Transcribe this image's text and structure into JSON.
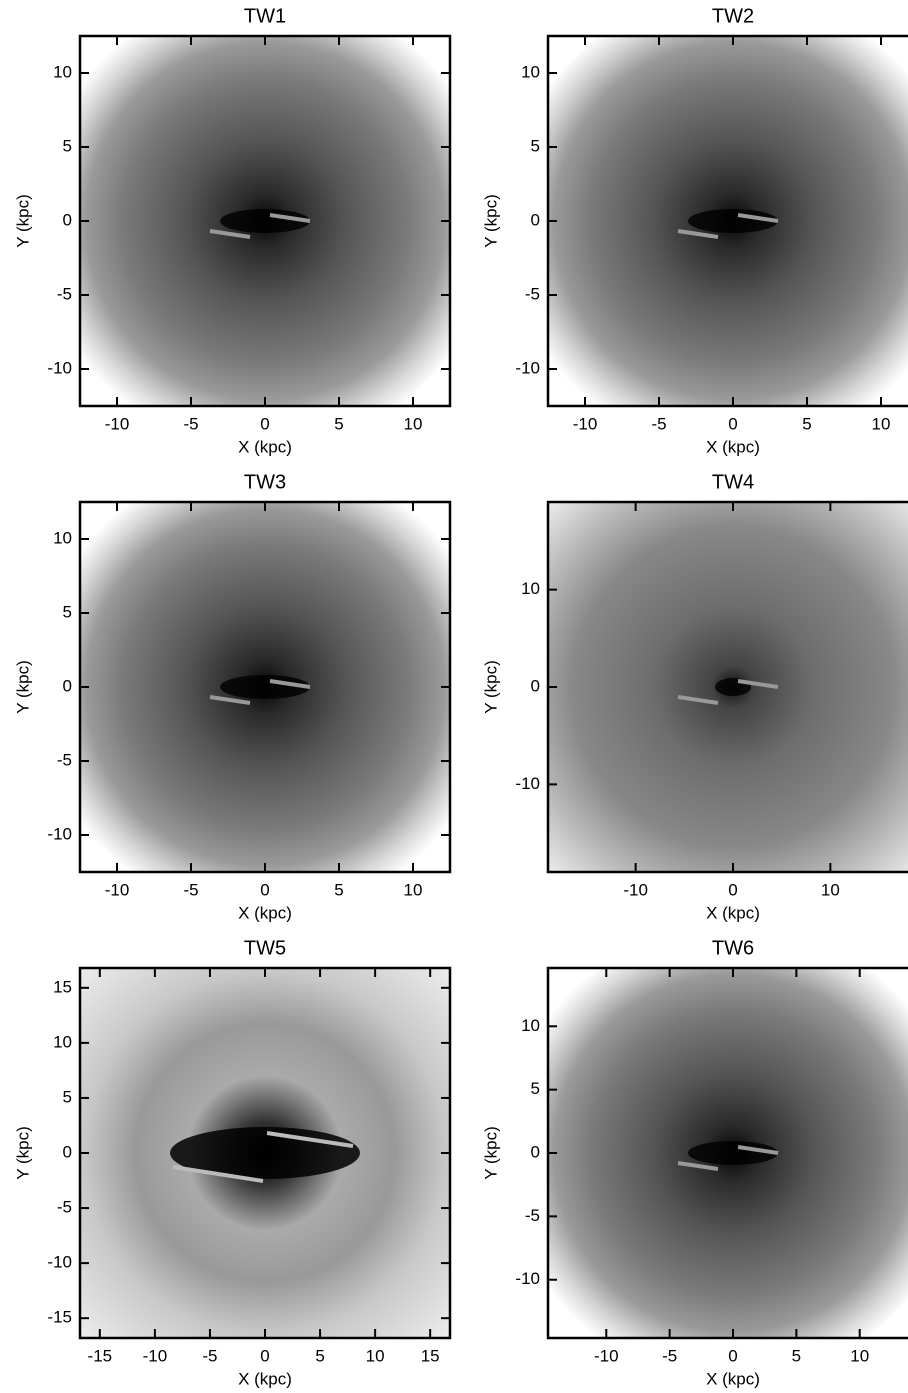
{
  "chart_data": [
    {
      "type": "image",
      "title": "TW1",
      "x_label": "X (kpc)",
      "y_label": "Y (kpc)",
      "xlim": [
        -12.5,
        12.5
      ],
      "ylim": [
        -12.5,
        12.5
      ],
      "xticks": [
        -10,
        -5,
        0,
        5,
        10
      ],
      "yticks": [
        -10,
        -5,
        0,
        5,
        10
      ]
    },
    {
      "type": "image",
      "title": "TW2",
      "x_label": "X (kpc)",
      "y_label": "Y (kpc)",
      "xlim": [
        -12.5,
        12.5
      ],
      "ylim": [
        -12.5,
        12.5
      ],
      "xticks": [
        -10,
        -5,
        0,
        5,
        10
      ],
      "yticks": [
        -10,
        -5,
        0,
        5,
        10
      ]
    },
    {
      "type": "image",
      "title": "TW3",
      "x_label": "X (kpc)",
      "y_label": "Y (kpc)",
      "xlim": [
        -12.5,
        12.5
      ],
      "ylim": [
        -12.5,
        12.5
      ],
      "xticks": [
        -10,
        -5,
        0,
        5,
        10
      ],
      "yticks": [
        -10,
        -5,
        0,
        5,
        10
      ]
    },
    {
      "type": "image",
      "title": "TW4",
      "x_label": "X (kpc)",
      "y_label": "Y (kpc)",
      "xlim": [
        -19,
        19
      ],
      "ylim": [
        -19,
        19
      ],
      "xticks": [
        -10,
        0,
        10
      ],
      "yticks": [
        -10,
        0,
        10
      ]
    },
    {
      "type": "image",
      "title": "TW5",
      "x_label": "X (kpc)",
      "y_label": "Y (kpc)",
      "xlim": [
        -16.8,
        16.8
      ],
      "ylim": [
        -16.8,
        16.8
      ],
      "xticks": [
        -15,
        -10,
        -5,
        0,
        5,
        10,
        15
      ],
      "yticks": [
        -15,
        -10,
        -5,
        0,
        5,
        10,
        15
      ]
    },
    {
      "type": "image",
      "title": "TW6",
      "x_label": "X (kpc)",
      "y_label": "Y (kpc)",
      "xlim": [
        -14.6,
        14.6
      ],
      "ylim": [
        -14.6,
        14.6
      ],
      "xticks": [
        -10,
        -5,
        0,
        5,
        10
      ],
      "yticks": [
        -10,
        -5,
        0,
        5,
        10
      ]
    }
  ]
}
